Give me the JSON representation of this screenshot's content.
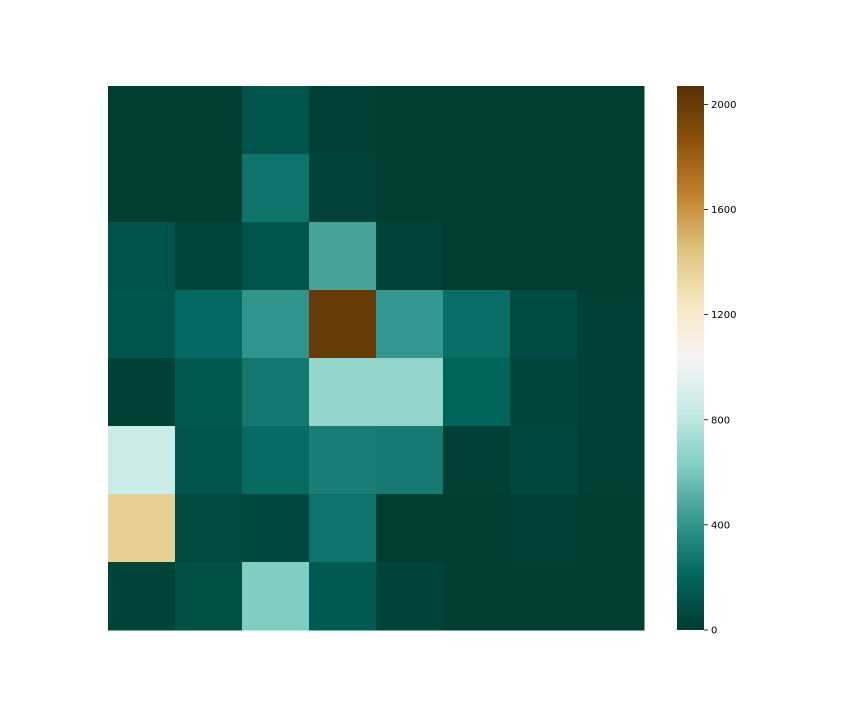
{
  "chart_data": {
    "type": "heatmap",
    "title": "",
    "xlabel": "",
    "ylabel": "",
    "rows": 8,
    "cols": 8,
    "values": [
      [
        10,
        10,
        120,
        15,
        5,
        5,
        5,
        5
      ],
      [
        10,
        10,
        260,
        30,
        5,
        5,
        5,
        5
      ],
      [
        110,
        50,
        120,
        460,
        30,
        5,
        5,
        5
      ],
      [
        120,
        220,
        400,
        2000,
        410,
        240,
        80,
        20
      ],
      [
        25,
        140,
        280,
        680,
        680,
        200,
        50,
        20
      ],
      [
        840,
        120,
        230,
        310,
        290,
        20,
        60,
        20
      ],
      [
        1380,
        70,
        60,
        260,
        10,
        10,
        15,
        10
      ],
      [
        35,
        100,
        620,
        150,
        40,
        10,
        10,
        10
      ]
    ],
    "vmin": 0,
    "vmax": 2070,
    "colormap": "BrBG_r",
    "colorbar": {
      "ticks": [
        0,
        400,
        800,
        1200,
        1600,
        2000
      ],
      "tick_labels": [
        "0",
        "400",
        "800",
        "1200",
        "1600",
        "2000"
      ]
    }
  }
}
